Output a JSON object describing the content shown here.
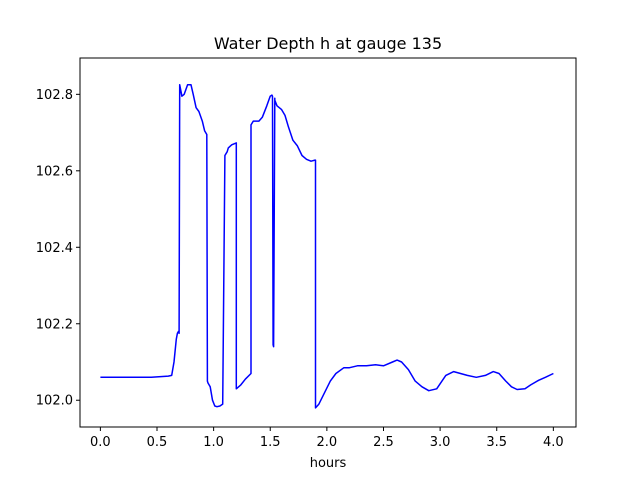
{
  "chart_data": {
    "type": "line",
    "title": "Water Depth h at gauge 135",
    "xlabel": "hours",
    "ylabel": "",
    "xlim": [
      -0.18,
      4.2
    ],
    "ylim": [
      101.93,
      102.895
    ],
    "x_ticks": [
      0.0,
      0.5,
      1.0,
      1.5,
      2.0,
      2.5,
      3.0,
      3.5,
      4.0
    ],
    "x_tick_labels": [
      "0.0",
      "0.5",
      "1.0",
      "1.5",
      "2.0",
      "2.5",
      "3.0",
      "3.5",
      "4.0"
    ],
    "y_ticks": [
      102.0,
      102.2,
      102.4,
      102.6,
      102.8
    ],
    "y_tick_labels": [
      "102.0",
      "102.2",
      "102.4",
      "102.6",
      "102.8"
    ],
    "grid": false,
    "legend": "none",
    "series": [
      {
        "color": "#0000ff",
        "x": [
          0.0,
          0.3,
          0.45,
          0.6,
          0.63,
          0.65,
          0.67,
          0.68,
          0.69,
          0.695,
          0.7,
          0.72,
          0.74,
          0.77,
          0.8,
          0.82,
          0.845,
          0.87,
          0.9,
          0.92,
          0.94,
          0.945,
          0.95,
          0.97,
          0.99,
          1.01,
          1.03,
          1.055,
          1.08,
          1.1,
          1.12,
          1.13,
          1.16,
          1.2,
          1.2,
          1.24,
          1.28,
          1.33,
          1.33,
          1.35,
          1.4,
          1.43,
          1.47,
          1.5,
          1.515,
          1.52,
          1.525,
          1.53,
          1.54,
          1.54,
          1.56,
          1.6,
          1.63,
          1.66,
          1.7,
          1.74,
          1.78,
          1.82,
          1.86,
          1.895,
          1.9,
          1.9,
          1.93,
          1.98,
          2.03,
          2.08,
          2.15,
          2.2,
          2.27,
          2.35,
          2.43,
          2.5,
          2.58,
          2.62,
          2.66,
          2.72,
          2.78,
          2.84,
          2.9,
          2.97,
          3.05,
          3.12,
          3.18,
          3.24,
          3.32,
          3.4,
          3.47,
          3.52,
          3.58,
          3.63,
          3.68,
          3.75,
          3.8,
          3.87,
          3.93,
          4.0
        ],
        "y": [
          102.06,
          102.06,
          102.06,
          102.063,
          102.065,
          102.1,
          102.16,
          102.175,
          102.18,
          102.175,
          102.825,
          102.795,
          102.8,
          102.825,
          102.825,
          102.8,
          102.765,
          102.755,
          102.73,
          102.705,
          102.695,
          102.05,
          102.045,
          102.035,
          102.0,
          101.985,
          101.983,
          101.985,
          101.99,
          102.64,
          102.65,
          102.66,
          102.668,
          102.673,
          102.03,
          102.04,
          102.055,
          102.07,
          102.72,
          102.73,
          102.73,
          102.74,
          102.77,
          102.795,
          102.798,
          102.795,
          102.145,
          102.14,
          102.79,
          102.785,
          102.77,
          102.76,
          102.745,
          102.715,
          102.68,
          102.665,
          102.64,
          102.63,
          102.625,
          102.628,
          102.628,
          101.98,
          101.99,
          102.02,
          102.05,
          102.07,
          102.085,
          102.085,
          102.09,
          102.09,
          102.093,
          102.09,
          102.1,
          102.105,
          102.1,
          102.08,
          102.05,
          102.035,
          102.025,
          102.03,
          102.065,
          102.075,
          102.07,
          102.065,
          102.06,
          102.065,
          102.075,
          102.07,
          102.05,
          102.035,
          102.028,
          102.03,
          102.04,
          102.052,
          102.06,
          102.07
        ]
      }
    ]
  }
}
